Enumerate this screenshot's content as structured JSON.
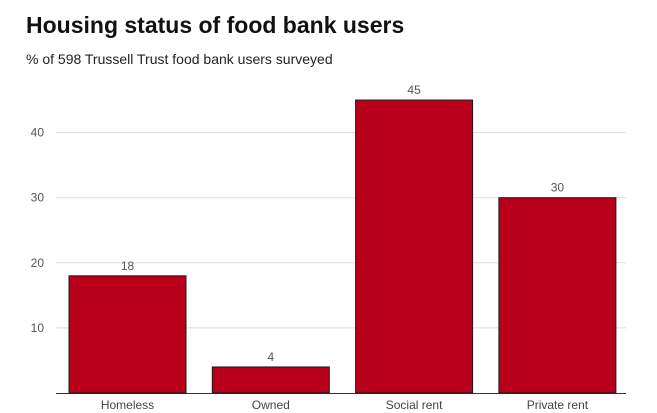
{
  "header": {
    "title": "Housing status of food bank users",
    "subtitle": "% of 598 Trussell Trust food bank users surveyed"
  },
  "colors": {
    "bar": "#b8001a",
    "grid": "#dddddd",
    "axis": "#333333"
  },
  "chart_data": {
    "type": "bar",
    "categories": [
      "Homeless",
      "Owned",
      "Social rent",
      "Private rent"
    ],
    "values": [
      18,
      4,
      45,
      30
    ],
    "data_labels": [
      "18",
      "4",
      "45",
      "30"
    ],
    "title": "Housing status of food bank users",
    "subtitle": "% of 598 Trussell Trust food bank users surveyed",
    "xlabel": "",
    "ylabel": "",
    "ylim": [
      0,
      50
    ],
    "yticks": [
      10,
      20,
      30,
      40
    ],
    "ytick_labels": [
      "10",
      "20",
      "30",
      "40"
    ],
    "grid": true,
    "legend": "none"
  }
}
